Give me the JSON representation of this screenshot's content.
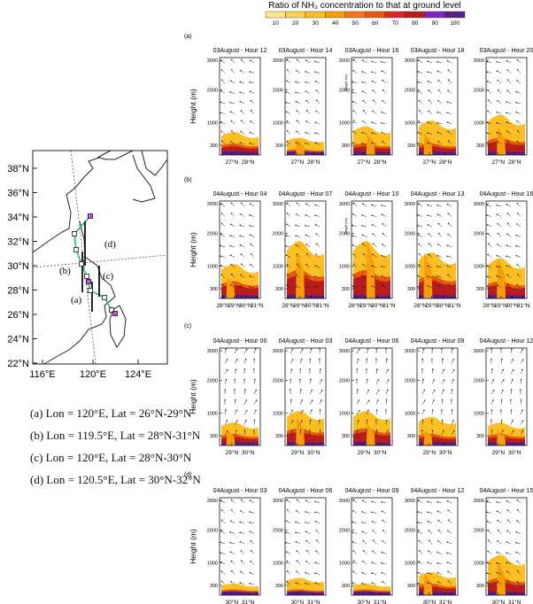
{
  "colorbar": {
    "title": "Ratio of NH₃ concentration to that at ground level",
    "ticks": [
      "10",
      "20",
      "30",
      "40",
      "50",
      "60",
      "70",
      "80",
      "90",
      "100"
    ],
    "colors": [
      "#fde68a",
      "#fcd34d",
      "#fbbf24",
      "#f59e0b",
      "#f97316",
      "#ea580c",
      "#dc2626",
      "#b91c1c",
      "#7e22ce",
      "#581c87"
    ]
  },
  "map": {
    "lat_ticks": [
      "38°N",
      "36°N",
      "34°N",
      "32°N",
      "30°N",
      "28°N",
      "26°N",
      "24°N",
      "22°N"
    ],
    "lon_ticks": [
      "116°E",
      "120°E",
      "124°E"
    ],
    "transect_labels": [
      "(a)",
      "(b)",
      "(c)",
      "(d)"
    ],
    "route_color": "#22c55e",
    "marker_color": "#d946ef"
  },
  "legend": [
    "(a)  Lon = 120°E, Lat = 26°N-29°N",
    "(b)  Lon = 119.5°E, Lat = 28°N-31°N",
    "(c)  Lon = 120°E, Lat = 28°N-30°N",
    "(d)  Lon = 120.5°E, Lat = 30°N-32°N"
  ],
  "chart_data": [
    {
      "type": "heatmap",
      "panel": "(a)",
      "ylabel": "Height (m)",
      "ylim": [
        0,
        3000
      ],
      "y_ticks": [
        "300",
        "1000",
        "2000",
        "3000"
      ],
      "x_ticks": [
        "27°N",
        "28°N"
      ],
      "titles": [
        "03August - Hour 12",
        "03August - Hour 14",
        "03August - Hour 16",
        "03August - Hour 18",
        "03August - Hour 20"
      ],
      "inner_ylabel": "Height (km)"
    },
    {
      "type": "heatmap",
      "panel": "(b)",
      "ylabel": "Height (m)",
      "ylim": [
        0,
        3000
      ],
      "y_ticks": [
        "300",
        "1000",
        "2000",
        "3000"
      ],
      "x_ticks": [
        "28°N",
        "29°N",
        "30°N",
        "31°N"
      ],
      "titles": [
        "04August - Hour 04",
        "04August - Hour 07",
        "04August - Hour 10",
        "04August - Hour 13",
        "04August - Hour 16"
      ],
      "inner_ylabel": "Height (km)"
    },
    {
      "type": "heatmap",
      "panel": "(c)",
      "ylabel": "Height (m)",
      "ylim": [
        0,
        3000
      ],
      "y_ticks": [
        "300",
        "1000",
        "2000",
        "3000"
      ],
      "x_ticks": [
        "29°N",
        "30°N"
      ],
      "titles": [
        "04August - Hour 00",
        "04August - Hour 03",
        "04August - Hour 06",
        "04August - Hour 09",
        "04August - Hour 12"
      ]
    },
    {
      "type": "heatmap",
      "panel": "(d)",
      "ylabel": "Height (m)",
      "ylim": [
        0,
        3000
      ],
      "y_ticks": [
        "300",
        "1000",
        "2000",
        "3000"
      ],
      "x_ticks": [
        "30°N",
        "31°N"
      ],
      "titles": [
        "04August - Hour 03",
        "04August - Hour 06",
        "04August - Hour 09",
        "04August - Hour 12",
        "04August - Hour 15"
      ]
    }
  ]
}
